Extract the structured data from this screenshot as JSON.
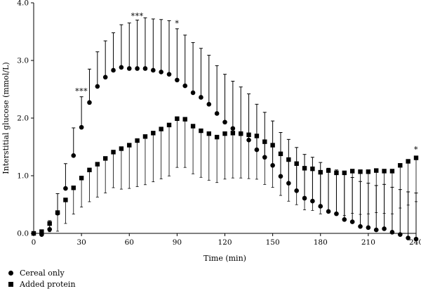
{
  "chart_data": {
    "type": "line",
    "xlabel": "Time (min)",
    "ylabel": "Interstitial glucose (mmol/L)",
    "xlim": [
      0,
      240
    ],
    "ylim": [
      0,
      4.0
    ],
    "x_ticks": [
      "0",
      "30",
      "60",
      "90",
      "120",
      "150",
      "180",
      "210",
      "240"
    ],
    "y_ticks": [
      "0.0",
      "1.0",
      "2.0",
      "3.0",
      "4.0"
    ],
    "x": [
      0,
      5,
      10,
      15,
      20,
      25,
      30,
      35,
      40,
      45,
      50,
      55,
      60,
      65,
      70,
      75,
      80,
      85,
      90,
      95,
      100,
      105,
      110,
      115,
      120,
      125,
      130,
      135,
      140,
      145,
      150,
      155,
      160,
      165,
      170,
      175,
      180,
      185,
      190,
      195,
      200,
      205,
      210,
      215,
      220,
      225,
      230,
      235,
      240
    ],
    "series": [
      {
        "name": "Cereal only",
        "marker": "circle",
        "values": [
          0.0,
          -0.02,
          0.07,
          0.35,
          0.78,
          1.35,
          1.84,
          2.27,
          2.55,
          2.71,
          2.83,
          2.88,
          2.86,
          2.86,
          2.86,
          2.83,
          2.8,
          2.76,
          2.66,
          2.56,
          2.44,
          2.36,
          2.24,
          2.08,
          1.93,
          1.82,
          1.73,
          1.62,
          1.45,
          1.32,
          1.18,
          0.99,
          0.87,
          0.74,
          0.61,
          0.56,
          0.47,
          0.38,
          0.34,
          0.24,
          0.2,
          0.12,
          0.1,
          0.06,
          0.08,
          0.02,
          -0.02,
          -0.08,
          -0.1
        ],
        "error_upper": [
          0.0,
          0.03,
          0.22,
          0.69,
          1.21,
          1.83,
          2.37,
          2.85,
          3.15,
          3.34,
          3.48,
          3.62,
          3.65,
          3.7,
          3.74,
          3.72,
          3.71,
          3.69,
          3.55,
          3.44,
          3.31,
          3.21,
          3.09,
          2.91,
          2.76,
          2.64,
          2.54,
          2.42,
          2.24,
          2.1,
          1.95,
          1.75,
          1.63,
          1.49,
          1.37,
          1.32,
          1.23,
          1.13,
          1.1,
          1.02,
          0.97,
          0.9,
          0.87,
          0.83,
          0.85,
          0.8,
          0.76,
          0.72,
          0.7
        ]
      },
      {
        "name": "Added protein",
        "marker": "square",
        "values": [
          0.0,
          0.03,
          0.17,
          0.36,
          0.58,
          0.79,
          0.96,
          1.1,
          1.2,
          1.3,
          1.41,
          1.47,
          1.53,
          1.61,
          1.68,
          1.74,
          1.81,
          1.88,
          1.99,
          1.98,
          1.86,
          1.78,
          1.73,
          1.67,
          1.73,
          1.74,
          1.73,
          1.71,
          1.69,
          1.59,
          1.53,
          1.38,
          1.28,
          1.21,
          1.13,
          1.12,
          1.06,
          1.09,
          1.05,
          1.05,
          1.08,
          1.07,
          1.07,
          1.09,
          1.08,
          1.08,
          1.18,
          1.25,
          1.31
        ]
      }
    ],
    "significance": [
      {
        "x": 30,
        "label": "***"
      },
      {
        "x": 65,
        "label": "***"
      },
      {
        "x": 90,
        "label": "*"
      },
      {
        "x": 240,
        "label": "*"
      }
    ],
    "legend": [
      {
        "label": "Cereal only",
        "marker": "circle"
      },
      {
        "label": "Added protein",
        "marker": "square"
      }
    ],
    "legend_position": "bottom-left",
    "grid": false
  }
}
